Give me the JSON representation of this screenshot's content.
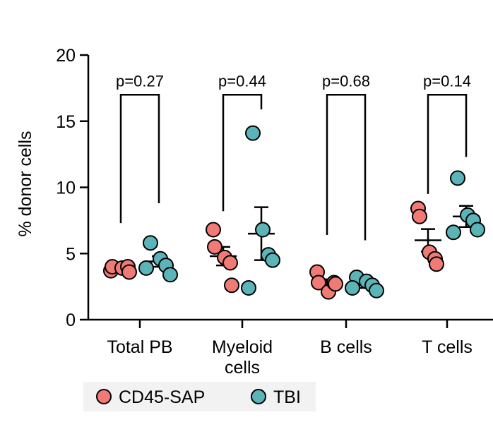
{
  "chart_data": {
    "type": "scatter",
    "ylabel": "% donor cells",
    "ylim": [
      0,
      20
    ],
    "yticks": [
      0,
      5,
      10,
      15,
      20
    ],
    "yticks_labels": [
      "0",
      "5",
      "10",
      "15",
      "20"
    ],
    "categories": [
      {
        "label_lines": [
          "Total PB"
        ]
      },
      {
        "label_lines": [
          "Myeloid",
          "cells"
        ]
      },
      {
        "label_lines": [
          "B cells"
        ]
      },
      {
        "label_lines": [
          "T cells"
        ]
      }
    ],
    "series": [
      {
        "name": "CD45-SAP",
        "color": "#f07b76",
        "groups": [
          {
            "points": [
              3.7,
              4.0,
              3.9,
              4.0,
              3.6
            ],
            "mean": 3.9,
            "sem": 0.1
          },
          {
            "points": [
              6.8,
              5.5,
              4.7,
              4.3,
              2.6
            ],
            "mean": 4.8,
            "sem": 0.7
          },
          {
            "points": [
              3.6,
              2.8,
              2.1,
              2.8,
              2.7
            ],
            "mean": 2.8,
            "sem": 0.25
          },
          {
            "points": [
              8.4,
              7.8,
              5.1,
              4.6,
              4.2
            ],
            "mean": 6.0,
            "sem": 0.85
          }
        ]
      },
      {
        "name": "TBI",
        "color": "#5bb4b8",
        "groups": [
          {
            "points": [
              5.8,
              4.6,
              4.1,
              3.4,
              3.9
            ],
            "mean": 4.4,
            "sem": 0.4
          },
          {
            "points": [
              14.1,
              6.8,
              4.9,
              4.5,
              2.4
            ],
            "mean": 6.5,
            "sem": 2.0
          },
          {
            "points": [
              3.2,
              2.9,
              2.6,
              2.2,
              2.4
            ],
            "mean": 2.6,
            "sem": 0.2
          },
          {
            "points": [
              10.7,
              7.9,
              7.5,
              6.8,
              6.6
            ],
            "mean": 7.8,
            "sem": 0.8
          }
        ]
      }
    ],
    "annotations": [
      {
        "text": "p=0.27",
        "left_y": 7.3,
        "right_y": 8.8,
        "bracket_y": 17.0
      },
      {
        "text": "p=0.44",
        "left_y": 8.2,
        "right_y": 15.9,
        "bracket_y": 17.0
      },
      {
        "text": "p=0.68",
        "left_y": 6.4,
        "right_y": 6.0,
        "bracket_y": 17.0
      },
      {
        "text": "p=0.14",
        "left_y": 9.5,
        "right_y": 12.3,
        "bracket_y": 17.0
      }
    ],
    "legend": {
      "placement": "bottom-left"
    }
  }
}
